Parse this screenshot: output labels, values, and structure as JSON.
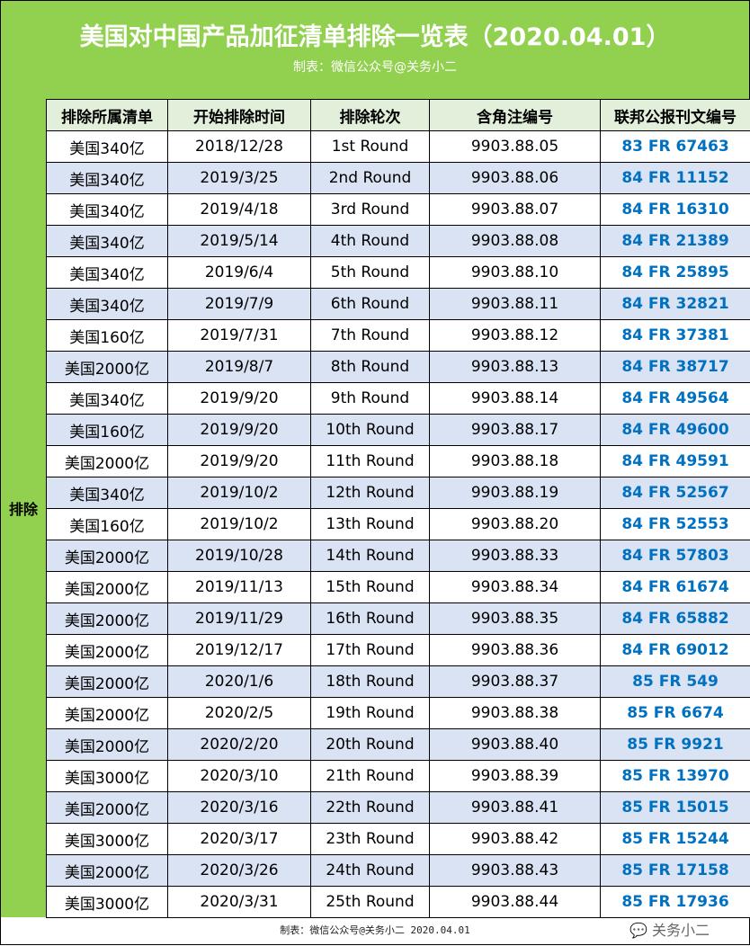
{
  "title": "美国对中国产品加征清单排除一览表（2020.04.01）",
  "subtitle": "制表：微信公众号@关务小二",
  "side_label": "排除",
  "headers": [
    "排除所属清单",
    "开始排除时间",
    "排除轮次",
    "含角注编号",
    "联邦公报刊文编号"
  ],
  "colors": {
    "green": "#92d050",
    "header_bg": "#e2efda",
    "alt_row": "#dae3f3",
    "link_blue": "#0070c0"
  },
  "rows": [
    [
      "美国340亿",
      "2018/12/28",
      "1st Round",
      "9903.88.05",
      "83 FR 67463"
    ],
    [
      "美国340亿",
      "2019/3/25",
      "2nd Round",
      "9903.88.06",
      "84 FR 11152"
    ],
    [
      "美国340亿",
      "2019/4/18",
      "3rd Round",
      "9903.88.07",
      "84 FR 16310"
    ],
    [
      "美国340亿",
      "2019/5/14",
      "4th Round",
      "9903.88.08",
      "84 FR 21389"
    ],
    [
      "美国340亿",
      "2019/6/4",
      "5th Round",
      "9903.88.10",
      "84 FR 25895"
    ],
    [
      "美国340亿",
      "2019/7/9",
      "6th Round",
      "9903.88.11",
      "84 FR 32821"
    ],
    [
      "美国160亿",
      "2019/7/31",
      "7th Round",
      "9903.88.12",
      "84 FR 37381"
    ],
    [
      "美国2000亿",
      "2019/8/7",
      "8th Round",
      "9903.88.13",
      "84 FR 38717"
    ],
    [
      "美国340亿",
      "2019/9/20",
      "9th Round",
      "9903.88.14",
      "84 FR 49564"
    ],
    [
      "美国160亿",
      "2019/9/20",
      "10th Round",
      "9903.88.17",
      "84 FR 49600"
    ],
    [
      "美国2000亿",
      "2019/9/20",
      "11th Round",
      "9903.88.18",
      "84 FR 49591"
    ],
    [
      "美国340亿",
      "2019/10/2",
      "12th Round",
      "9903.88.19",
      "84 FR 52567"
    ],
    [
      "美国160亿",
      "2019/10/2",
      "13th Round",
      "9903.88.20",
      "84 FR 52553"
    ],
    [
      "美国2000亿",
      "2019/10/28",
      "14th Round",
      "9903.88.33",
      "84 FR 57803"
    ],
    [
      "美国2000亿",
      "2019/11/13",
      "15th Round",
      "9903.88.34",
      "84 FR 61674"
    ],
    [
      "美国2000亿",
      "2019/11/29",
      "16th Round",
      "9903.88.35",
      "84 FR 65882"
    ],
    [
      "美国2000亿",
      "2019/12/17",
      "17th Round",
      "9903.88.36",
      "84 FR 69012"
    ],
    [
      "美国2000亿",
      "2020/1/6",
      "18th Round",
      "9903.88.37",
      "85 FR 549"
    ],
    [
      "美国2000亿",
      "2020/2/5",
      "19th Round",
      "9903.88.38",
      "85 FR 6674"
    ],
    [
      "美国2000亿",
      "2020/2/20",
      "20th Round",
      "9903.88.40",
      "85 FR 9921"
    ],
    [
      "美国3000亿",
      "2020/3/10",
      "21th Round",
      "9903.88.39",
      "85 FR 13970"
    ],
    [
      "美国2000亿",
      "2020/3/16",
      "22th Round",
      "9903.88.41",
      "85 FR 15015"
    ],
    [
      "美国3000亿",
      "2020/3/17",
      "23th Round",
      "9903.88.42",
      "85 FR 15244"
    ],
    [
      "美国2000亿",
      "2020/3/26",
      "24th Round",
      "9903.88.43",
      "85 FR 17158"
    ],
    [
      "美国3000亿",
      "2020/3/31",
      "25th Round",
      "9903.88.44",
      "85 FR 17936"
    ]
  ],
  "footer": "制表：微信公众号@关务小二  2020.04.01",
  "watermark": "关务小二"
}
